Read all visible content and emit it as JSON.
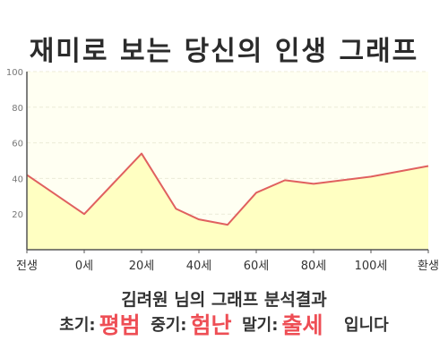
{
  "title": "재미로 보는 당신의 인생 그래프",
  "chart_data": {
    "type": "area",
    "categories": [
      "전생",
      "0세",
      "20세",
      "40세",
      "60세",
      "80세",
      "100세",
      "환생"
    ],
    "x": [
      -20,
      0,
      20,
      32,
      40,
      50,
      60,
      70,
      80,
      90,
      100,
      120
    ],
    "values": [
      42,
      20,
      54,
      23,
      17,
      14,
      32,
      39,
      37,
      39,
      41,
      47
    ],
    "ylim": [
      0,
      100
    ],
    "yticks": [
      20,
      40,
      60,
      80,
      100
    ],
    "grid": true,
    "colors": {
      "line": "#e0605f",
      "fill": "#ffffc2",
      "plot_bg": "#fffff2",
      "grid": "#ecebd8",
      "axis": "#555555"
    }
  },
  "result": {
    "title": "김려원 님의 그래프 분석결과",
    "early_label": "초기:",
    "early_value": "평범",
    "mid_label": "중기:",
    "mid_value": "험난",
    "late_label": "말기:",
    "late_value": "출세",
    "suffix": "입니다"
  }
}
